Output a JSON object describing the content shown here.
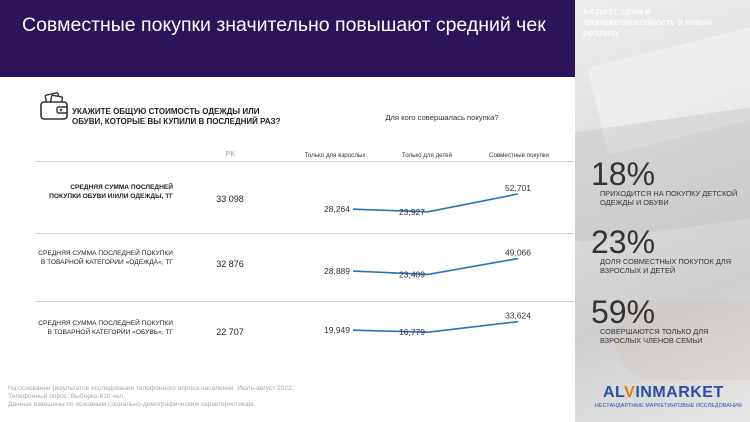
{
  "title": "Совместные покупки значительно повышают средний чек",
  "sidebar": {
    "top_text": "Бюджет, цена и платежеспособность в новых реалиях",
    "stats": [
      {
        "value": "18%",
        "text": "приходится на покупку детской одежды и обуви"
      },
      {
        "value": "23%",
        "text": "доля совместных покупок для взрослых и детей"
      },
      {
        "value": "59%",
        "text": "совершаются только для взрослых членов семьи"
      }
    ],
    "logo_a": "AL",
    "logo_mark": "V",
    "logo_b": "INMARKET",
    "logo_sub": "НЕСТАНДАРТНЫЕ МАРКЕТИНГОВЫЕ ИССЛЕДОВАНИЯ"
  },
  "question": "УКАЖИТЕ ОБЩУЮ СТОИМОСТЬ ОДЕЖДЫ ИЛИ ОБУВИ, КОТОРЫЕ ВЫ КУПИЛИ В ПОСЛЕДНИЙ РАЗ?",
  "who_header": "Для кого совершалась покупка?",
  "rk_header": "РК",
  "footer": [
    "На основании результатов исследования телефонного опроса населения. Июль-август 2022.",
    "Телефонный опрос. Выборка 810 чел.",
    "Данные взвешены по основным социально-демографическим характеристикам."
  ],
  "colors": {
    "header": "#2b1459",
    "line": "#2a72b8"
  },
  "chart_data": {
    "type": "line",
    "categories": [
      "Только для взрослых",
      "Только для детей",
      "Совместные покупки"
    ],
    "rows": [
      {
        "label": "СРЕДНЯЯ СУММА ПОСЛЕДНЕЙ ПОКУПКИ ОБУВИ И/ИЛИ ОДЕЖДЫ, тг",
        "rk": "33 098",
        "values": [
          28264,
          23927,
          52701
        ],
        "value_labels": [
          "28,264",
          "23,927",
          "52,701"
        ]
      },
      {
        "label": "СРЕДНЯЯ СУММА ПОСЛЕДНЕЙ ПОКУПКИ В ТОВАРНОЙ КАТЕГОРИИ «ОДЕЖДА», тг",
        "rk": "32 876",
        "values": [
          28889,
          23409,
          49066
        ],
        "value_labels": [
          "28,889",
          "23,409",
          "49,066"
        ]
      },
      {
        "label": "СРЕДНЯЯ СУММА ПОСЛЕДНЕЙ ПОКУПКИ В ТОВАРНОЙ КАТЕГОРИИ «ОБУВЬ», тг",
        "rk": "22 707",
        "values": [
          19949,
          16779,
          33624
        ],
        "value_labels": [
          "19,949",
          "16,779",
          "33,624"
        ]
      }
    ]
  }
}
